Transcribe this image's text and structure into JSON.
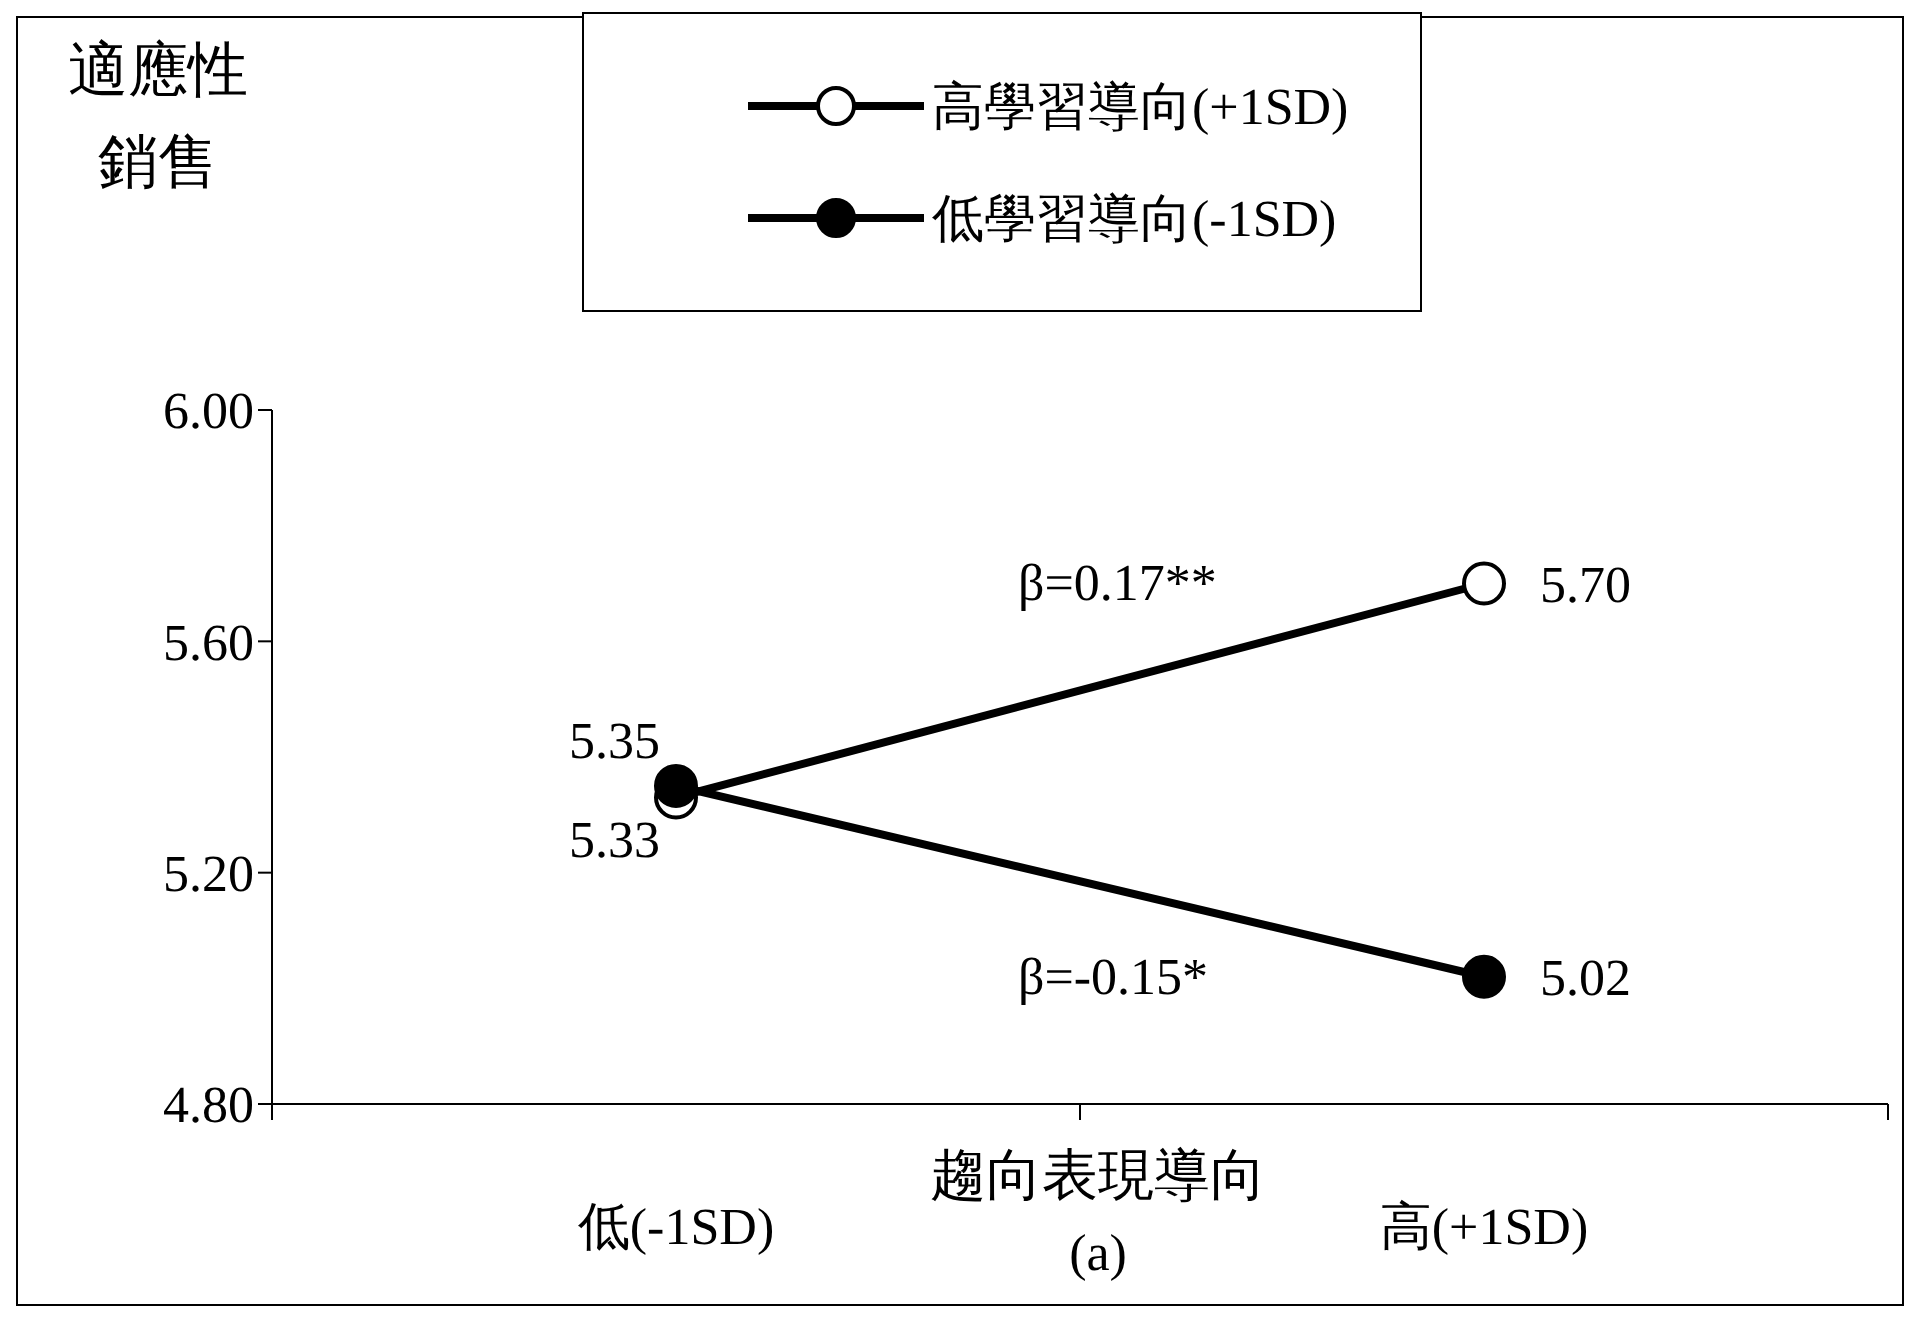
{
  "chart_data": {
    "type": "line",
    "ylabel": "適應性銷售",
    "xlabel": "趨向表現導向",
    "subtitle": "(a)",
    "categories": [
      "低(-1SD)",
      "高(+1SD)"
    ],
    "series": [
      {
        "name": "高學習導向(+1SD)",
        "color": "#ffffff",
        "values": [
          5.33,
          5.7
        ],
        "value_labels": [
          "5.33",
          "5.70"
        ]
      },
      {
        "name": "低學習導向(-1SD)",
        "color": "#000000",
        "values": [
          5.35,
          5.02
        ],
        "value_labels": [
          "5.35",
          "5.02"
        ]
      }
    ],
    "ylim": [
      4.8,
      6.0
    ],
    "yticks": [
      {
        "value": 4.8,
        "label": "4.80"
      },
      {
        "value": 5.2,
        "label": "5.20"
      },
      {
        "value": 5.6,
        "label": "5.60"
      },
      {
        "value": 6.0,
        "label": "6.00"
      }
    ],
    "annotations": [
      "β=0.17**",
      "β=-0.15*"
    ],
    "legend": "top",
    "marker": "circle",
    "grid": false
  }
}
